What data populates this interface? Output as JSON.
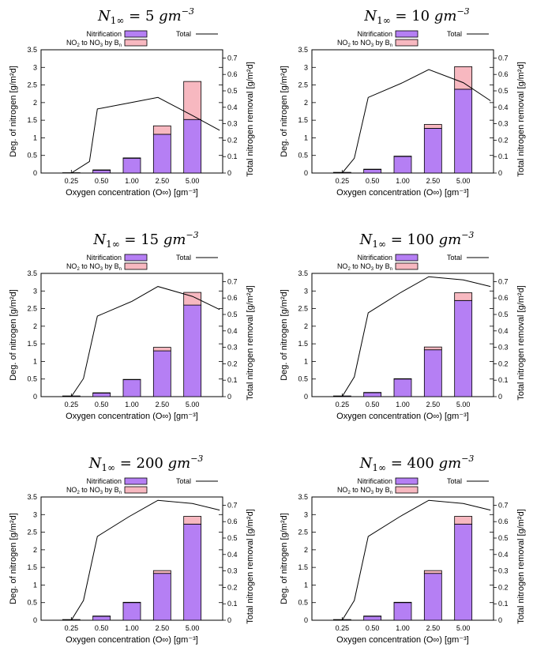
{
  "figure": {
    "legend_entries": [
      "Nitrification",
      "NO2 to NO3 by Bn",
      "Total"
    ],
    "xlabel": "Oxygen concentration (O∞) [gm⁻³]",
    "ylabel_left": "Deg. of nitrogen [g/m²d]",
    "ylabel_right": "Total nitrogen removal [g/m²d]"
  },
  "colors": {
    "nitrification": "#b57ff4",
    "no2_to_no3": "#f7b8c0",
    "total_line": "#000000",
    "background": "#ffffff"
  },
  "chart_data": [
    {
      "type": "bar",
      "title_prefix": "N",
      "title_sub": "1∞",
      "title_value": "= 5",
      "title_unit": "gm",
      "title_exp": "−3",
      "categories": [
        "0.25",
        "0.50",
        "1.00",
        "2.50",
        "5.00"
      ],
      "xlabel": "Oxygen concentration (O∞) [gm⁻³]",
      "ylabel": "Deg. of nitrogen [g/m²d]",
      "y2label": "Total nitrogen removal [g/m²d]",
      "ylim": [
        0,
        3.5
      ],
      "y2lim": [
        0,
        0.75
      ],
      "yticks": [
        "0",
        "0.5",
        "1",
        "1.5",
        "2",
        "2.5",
        "3",
        "3.5"
      ],
      "y2ticks": [
        "0",
        "0.1",
        "0.2",
        "0.3",
        "0.4",
        "0.5",
        "0.6",
        "0.7"
      ],
      "series": [
        {
          "name": "Nitrification",
          "values": [
            0.01,
            0.08,
            0.42,
            1.1,
            1.52
          ]
        },
        {
          "name": "NO2 to NO3 by Bn",
          "values": [
            0.0,
            0.01,
            0.01,
            0.24,
            1.08
          ]
        }
      ],
      "total_line": {
        "name": "Total",
        "x": [
          0.5,
          1.0,
          1.6,
          1.86,
          3.0,
          3.86,
          5.0,
          5.9
        ],
        "y": [
          0.0,
          0.0,
          0.07,
          0.39,
          0.43,
          0.46,
          0.35,
          0.26
        ]
      }
    },
    {
      "type": "bar",
      "title_prefix": "N",
      "title_sub": "1∞",
      "title_value": "= 10",
      "title_unit": "gm",
      "title_exp": "−3",
      "categories": [
        "0.25",
        "0.50",
        "1.00",
        "2.50",
        "5.00"
      ],
      "xlabel": "Oxygen concentration (O∞) [gm⁻³]",
      "ylabel": "Deg. of nitrogen [g/m²d]",
      "y2label": "Total nitrogen removal [g/m²d]",
      "ylim": [
        0,
        3.5
      ],
      "y2lim": [
        0,
        0.75
      ],
      "yticks": [
        "0",
        "0.5",
        "1",
        "1.5",
        "2",
        "2.5",
        "3",
        "3.5"
      ],
      "y2ticks": [
        "0",
        "0.1",
        "0.2",
        "0.3",
        "0.4",
        "0.5",
        "0.6",
        "0.7"
      ],
      "series": [
        {
          "name": "Nitrification",
          "values": [
            0.02,
            0.1,
            0.47,
            1.27,
            2.38
          ]
        },
        {
          "name": "NO2 to NO3 by Bn",
          "values": [
            0.0,
            0.01,
            0.01,
            0.11,
            0.64
          ]
        }
      ],
      "total_line": {
        "name": "Total",
        "x": [
          0.5,
          1.0,
          1.4,
          1.86,
          3.0,
          3.86,
          5.0,
          5.9
        ],
        "y": [
          0.0,
          0.0,
          0.09,
          0.46,
          0.55,
          0.63,
          0.55,
          0.44
        ]
      }
    },
    {
      "type": "bar",
      "title_prefix": "N",
      "title_sub": "1∞",
      "title_value": "= 15",
      "title_unit": "gm",
      "title_exp": "−3",
      "categories": [
        "0.25",
        "0.50",
        "1.00",
        "2.50",
        "5.00"
      ],
      "xlabel": "Oxygen concentration (O∞) [gm⁻³]",
      "ylabel": "Deg. of nitrogen [g/m²d]",
      "y2label": "Total nitrogen removal [g/m²d]",
      "ylim": [
        0,
        3.5
      ],
      "y2lim": [
        0,
        0.75
      ],
      "yticks": [
        "0",
        "0.5",
        "1",
        "1.5",
        "2",
        "2.5",
        "3",
        "3.5"
      ],
      "y2ticks": [
        "0",
        "0.1",
        "0.2",
        "0.3",
        "0.4",
        "0.5",
        "0.6",
        "0.7"
      ],
      "series": [
        {
          "name": "Nitrification",
          "values": [
            0.02,
            0.1,
            0.48,
            1.3,
            2.6
          ]
        },
        {
          "name": "NO2 to NO3 by Bn",
          "values": [
            0.0,
            0.01,
            0.01,
            0.1,
            0.36
          ]
        }
      ],
      "total_line": {
        "name": "Total",
        "x": [
          0.5,
          1.0,
          1.4,
          1.86,
          3.0,
          3.86,
          5.0,
          5.9
        ],
        "y": [
          0.0,
          0.0,
          0.11,
          0.49,
          0.58,
          0.67,
          0.61,
          0.53
        ]
      }
    },
    {
      "type": "bar",
      "title_prefix": "N",
      "title_sub": "1∞",
      "title_value": "= 100",
      "title_unit": "gm",
      "title_exp": "−3",
      "categories": [
        "0.25",
        "0.50",
        "1.00",
        "2.50",
        "5.00"
      ],
      "xlabel": "Oxygen concentration (O∞) [gm⁻³]",
      "ylabel": "Deg. of nitrogen [g/m²d]",
      "y2label": "Total nitrogen removal [g/m²d]",
      "ylim": [
        0,
        3.5
      ],
      "y2lim": [
        0,
        0.75
      ],
      "yticks": [
        "0",
        "0.5",
        "1",
        "1.5",
        "2",
        "2.5",
        "3",
        "3.5"
      ],
      "y2ticks": [
        "0",
        "0.1",
        "0.2",
        "0.3",
        "0.4",
        "0.5",
        "0.6",
        "0.7"
      ],
      "series": [
        {
          "name": "Nitrification",
          "values": [
            0.02,
            0.11,
            0.5,
            1.33,
            2.73
          ]
        },
        {
          "name": "NO2 to NO3 by Bn",
          "values": [
            0.0,
            0.01,
            0.01,
            0.08,
            0.22
          ]
        }
      ],
      "total_line": {
        "name": "Total",
        "x": [
          0.5,
          1.0,
          1.4,
          1.86,
          2.9,
          3.86,
          5.0,
          5.9
        ],
        "y": [
          0.0,
          0.0,
          0.12,
          0.51,
          0.63,
          0.73,
          0.71,
          0.67
        ]
      }
    },
    {
      "type": "bar",
      "title_prefix": "N",
      "title_sub": "1∞",
      "title_value": "= 200",
      "title_unit": "gm",
      "title_exp": "−3",
      "categories": [
        "0.25",
        "0.50",
        "1.00",
        "2.50",
        "5.00"
      ],
      "xlabel": "Oxygen concentration (O∞) [gm⁻³]",
      "ylabel": "Deg. of nitrogen [g/m²d]",
      "y2label": "Total nitrogen removal [g/m²d]",
      "ylim": [
        0,
        3.5
      ],
      "y2lim": [
        0,
        0.75
      ],
      "yticks": [
        "0",
        "0.5",
        "1",
        "1.5",
        "2",
        "2.5",
        "3",
        "3.5"
      ],
      "y2ticks": [
        "0",
        "0.1",
        "0.2",
        "0.3",
        "0.4",
        "0.5",
        "0.6",
        "0.7"
      ],
      "series": [
        {
          "name": "Nitrification",
          "values": [
            0.02,
            0.11,
            0.5,
            1.33,
            2.73
          ]
        },
        {
          "name": "NO2 to NO3 by Bn",
          "values": [
            0.0,
            0.01,
            0.01,
            0.08,
            0.22
          ]
        }
      ],
      "total_line": {
        "name": "Total",
        "x": [
          0.5,
          1.0,
          1.4,
          1.86,
          2.9,
          3.86,
          5.0,
          5.9
        ],
        "y": [
          0.0,
          0.0,
          0.12,
          0.51,
          0.63,
          0.73,
          0.71,
          0.67
        ]
      }
    },
    {
      "type": "bar",
      "title_prefix": "N",
      "title_sub": "1∞",
      "title_value": "= 400",
      "title_unit": "gm",
      "title_exp": "−3",
      "categories": [
        "0.25",
        "0.50",
        "1.00",
        "2.50",
        "5.00"
      ],
      "xlabel": "Oxygen concentration (O∞) [gm⁻³]",
      "ylabel": "Deg. of nitrogen [g/m²d]",
      "y2label": "Total nitrogen removal [g/m²d]",
      "ylim": [
        0,
        3.5
      ],
      "y2lim": [
        0,
        0.75
      ],
      "yticks": [
        "0",
        "0.5",
        "1",
        "1.5",
        "2",
        "2.5",
        "3",
        "3.5"
      ],
      "y2ticks": [
        "0",
        "0.1",
        "0.2",
        "0.3",
        "0.4",
        "0.5",
        "0.6",
        "0.7"
      ],
      "series": [
        {
          "name": "Nitrification",
          "values": [
            0.02,
            0.11,
            0.5,
            1.33,
            2.73
          ]
        },
        {
          "name": "NO2 to NO3 by Bn",
          "values": [
            0.0,
            0.01,
            0.01,
            0.08,
            0.22
          ]
        }
      ],
      "total_line": {
        "name": "Total",
        "x": [
          0.5,
          1.0,
          1.4,
          1.86,
          2.9,
          3.86,
          5.0,
          5.9
        ],
        "y": [
          0.0,
          0.0,
          0.12,
          0.51,
          0.63,
          0.73,
          0.71,
          0.67
        ]
      }
    }
  ]
}
